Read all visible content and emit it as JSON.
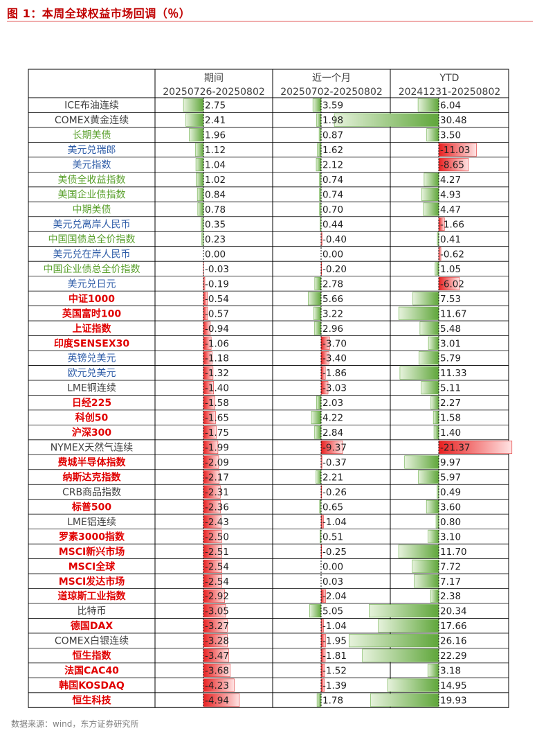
{
  "page": {
    "title": "图 1：本周全球权益市场回调（％）",
    "source": "数据来源：wind，东方证券研究所"
  },
  "colors": {
    "title_red": "#c00000",
    "equity_red": "#e00000",
    "commodity_gray": "#404040",
    "fx_blue": "#2f5da8",
    "bond_green": "#5aa02c",
    "neg_fill": "#e03030",
    "pos_fill": "#6aae48"
  },
  "chart_data": {
    "type": "table",
    "title": "本周全球权益市场回调（％）",
    "columns": [
      {
        "label": "期间",
        "range": "20250726-20250802"
      },
      {
        "label": "近一个月",
        "range": "20250702-20250802"
      },
      {
        "label": "YTD",
        "range": "20241231-20250802"
      }
    ],
    "rows": [
      {
        "name": "ICE布油连续",
        "cat": "commodity",
        "values": [
          2.75,
          3.59,
          6.04
        ]
      },
      {
        "name": "COMEX黄金连续",
        "cat": "commodity",
        "values": [
          2.41,
          1.98,
          30.48
        ]
      },
      {
        "name": "长期美债",
        "cat": "bond",
        "values": [
          1.96,
          0.87,
          3.5
        ]
      },
      {
        "name": "美元兑瑞郎",
        "cat": "fx",
        "values": [
          1.12,
          1.62,
          -11.03
        ]
      },
      {
        "name": "美元指数",
        "cat": "fx",
        "values": [
          1.04,
          2.12,
          -8.65
        ]
      },
      {
        "name": "美债全收益指数",
        "cat": "bond",
        "values": [
          1.02,
          0.74,
          4.27
        ]
      },
      {
        "name": "美国企业债指数",
        "cat": "bond",
        "values": [
          0.84,
          0.74,
          4.93
        ]
      },
      {
        "name": "中期美债",
        "cat": "bond",
        "values": [
          0.78,
          0.7,
          4.47
        ]
      },
      {
        "name": "美元兑离岸人民币",
        "cat": "fx",
        "values": [
          0.35,
          0.44,
          -1.66
        ]
      },
      {
        "name": "中国国债总全价指数",
        "cat": "bond",
        "values": [
          0.23,
          -0.4,
          0.41
        ]
      },
      {
        "name": "美元兑在岸人民币",
        "cat": "fx",
        "values": [
          0.0,
          0.0,
          -0.62
        ]
      },
      {
        "name": "中国企业债总全价指数",
        "cat": "bond",
        "values": [
          -0.03,
          -0.2,
          1.05
        ]
      },
      {
        "name": "美元兑日元",
        "cat": "fx",
        "values": [
          -0.19,
          2.78,
          -6.02
        ]
      },
      {
        "name": "中证1000",
        "cat": "equity",
        "values": [
          -0.54,
          5.66,
          7.53
        ]
      },
      {
        "name": "英国富时100",
        "cat": "equity",
        "values": [
          -0.57,
          3.22,
          11.67
        ]
      },
      {
        "name": "上证指数",
        "cat": "equity",
        "values": [
          -0.94,
          2.96,
          5.48
        ]
      },
      {
        "name": "印度SENSEX30",
        "cat": "equity",
        "values": [
          -1.06,
          -3.7,
          3.01
        ]
      },
      {
        "name": "英镑兑美元",
        "cat": "fx",
        "values": [
          -1.18,
          -3.4,
          5.79
        ]
      },
      {
        "name": "欧元兑美元",
        "cat": "fx",
        "values": [
          -1.32,
          -1.86,
          11.33
        ]
      },
      {
        "name": "LME铜连续",
        "cat": "commodity",
        "values": [
          -1.4,
          -3.03,
          5.11
        ]
      },
      {
        "name": "日经225",
        "cat": "equity",
        "values": [
          -1.58,
          2.03,
          2.27
        ]
      },
      {
        "name": "科创50",
        "cat": "equity",
        "values": [
          -1.65,
          4.22,
          1.58
        ]
      },
      {
        "name": "沪深300",
        "cat": "equity",
        "values": [
          -1.75,
          2.84,
          1.4
        ]
      },
      {
        "name": "NYMEX天然气连续",
        "cat": "commodity",
        "values": [
          -1.99,
          -9.37,
          -21.37
        ]
      },
      {
        "name": "费城半导体指数",
        "cat": "equity",
        "values": [
          -2.09,
          -0.37,
          9.97
        ]
      },
      {
        "name": "纳斯达克指数",
        "cat": "equity",
        "values": [
          -2.17,
          2.21,
          5.97
        ]
      },
      {
        "name": "CRB商品指数",
        "cat": "commodity",
        "values": [
          -2.31,
          -0.26,
          0.49
        ]
      },
      {
        "name": "标普500",
        "cat": "equity",
        "values": [
          -2.36,
          0.65,
          3.6
        ]
      },
      {
        "name": "LME铝连续",
        "cat": "commodity",
        "values": [
          -2.43,
          -1.04,
          0.8
        ]
      },
      {
        "name": "罗素3000指数",
        "cat": "equity",
        "values": [
          -2.5,
          0.51,
          3.1
        ]
      },
      {
        "name": "MSCI新兴市场",
        "cat": "equity",
        "values": [
          -2.51,
          -0.25,
          11.7
        ]
      },
      {
        "name": "MSCI全球",
        "cat": "equity",
        "values": [
          -2.54,
          0.0,
          7.72
        ]
      },
      {
        "name": "MSCI发达市场",
        "cat": "equity",
        "values": [
          -2.54,
          0.03,
          7.17
        ]
      },
      {
        "name": "道琼斯工业指数",
        "cat": "equity",
        "values": [
          -2.92,
          -2.04,
          2.38
        ]
      },
      {
        "name": "比特币",
        "cat": "commodity",
        "values": [
          -3.05,
          5.05,
          20.34
        ]
      },
      {
        "name": "德国DAX",
        "cat": "equity",
        "values": [
          -3.27,
          -1.04,
          17.66
        ]
      },
      {
        "name": "COMEX白银连续",
        "cat": "commodity",
        "values": [
          -3.28,
          -1.95,
          26.16
        ]
      },
      {
        "name": "恒生指数",
        "cat": "equity",
        "values": [
          -3.47,
          -1.81,
          22.29
        ]
      },
      {
        "name": "法国CAC40",
        "cat": "equity",
        "values": [
          -3.68,
          -1.52,
          3.18
        ]
      },
      {
        "name": "韩国KOSDAQ",
        "cat": "equity",
        "values": [
          -4.23,
          -1.39,
          14.95
        ]
      },
      {
        "name": "恒生科技",
        "cat": "equity",
        "values": [
          -4.94,
          1.78,
          19.93
        ]
      }
    ]
  }
}
